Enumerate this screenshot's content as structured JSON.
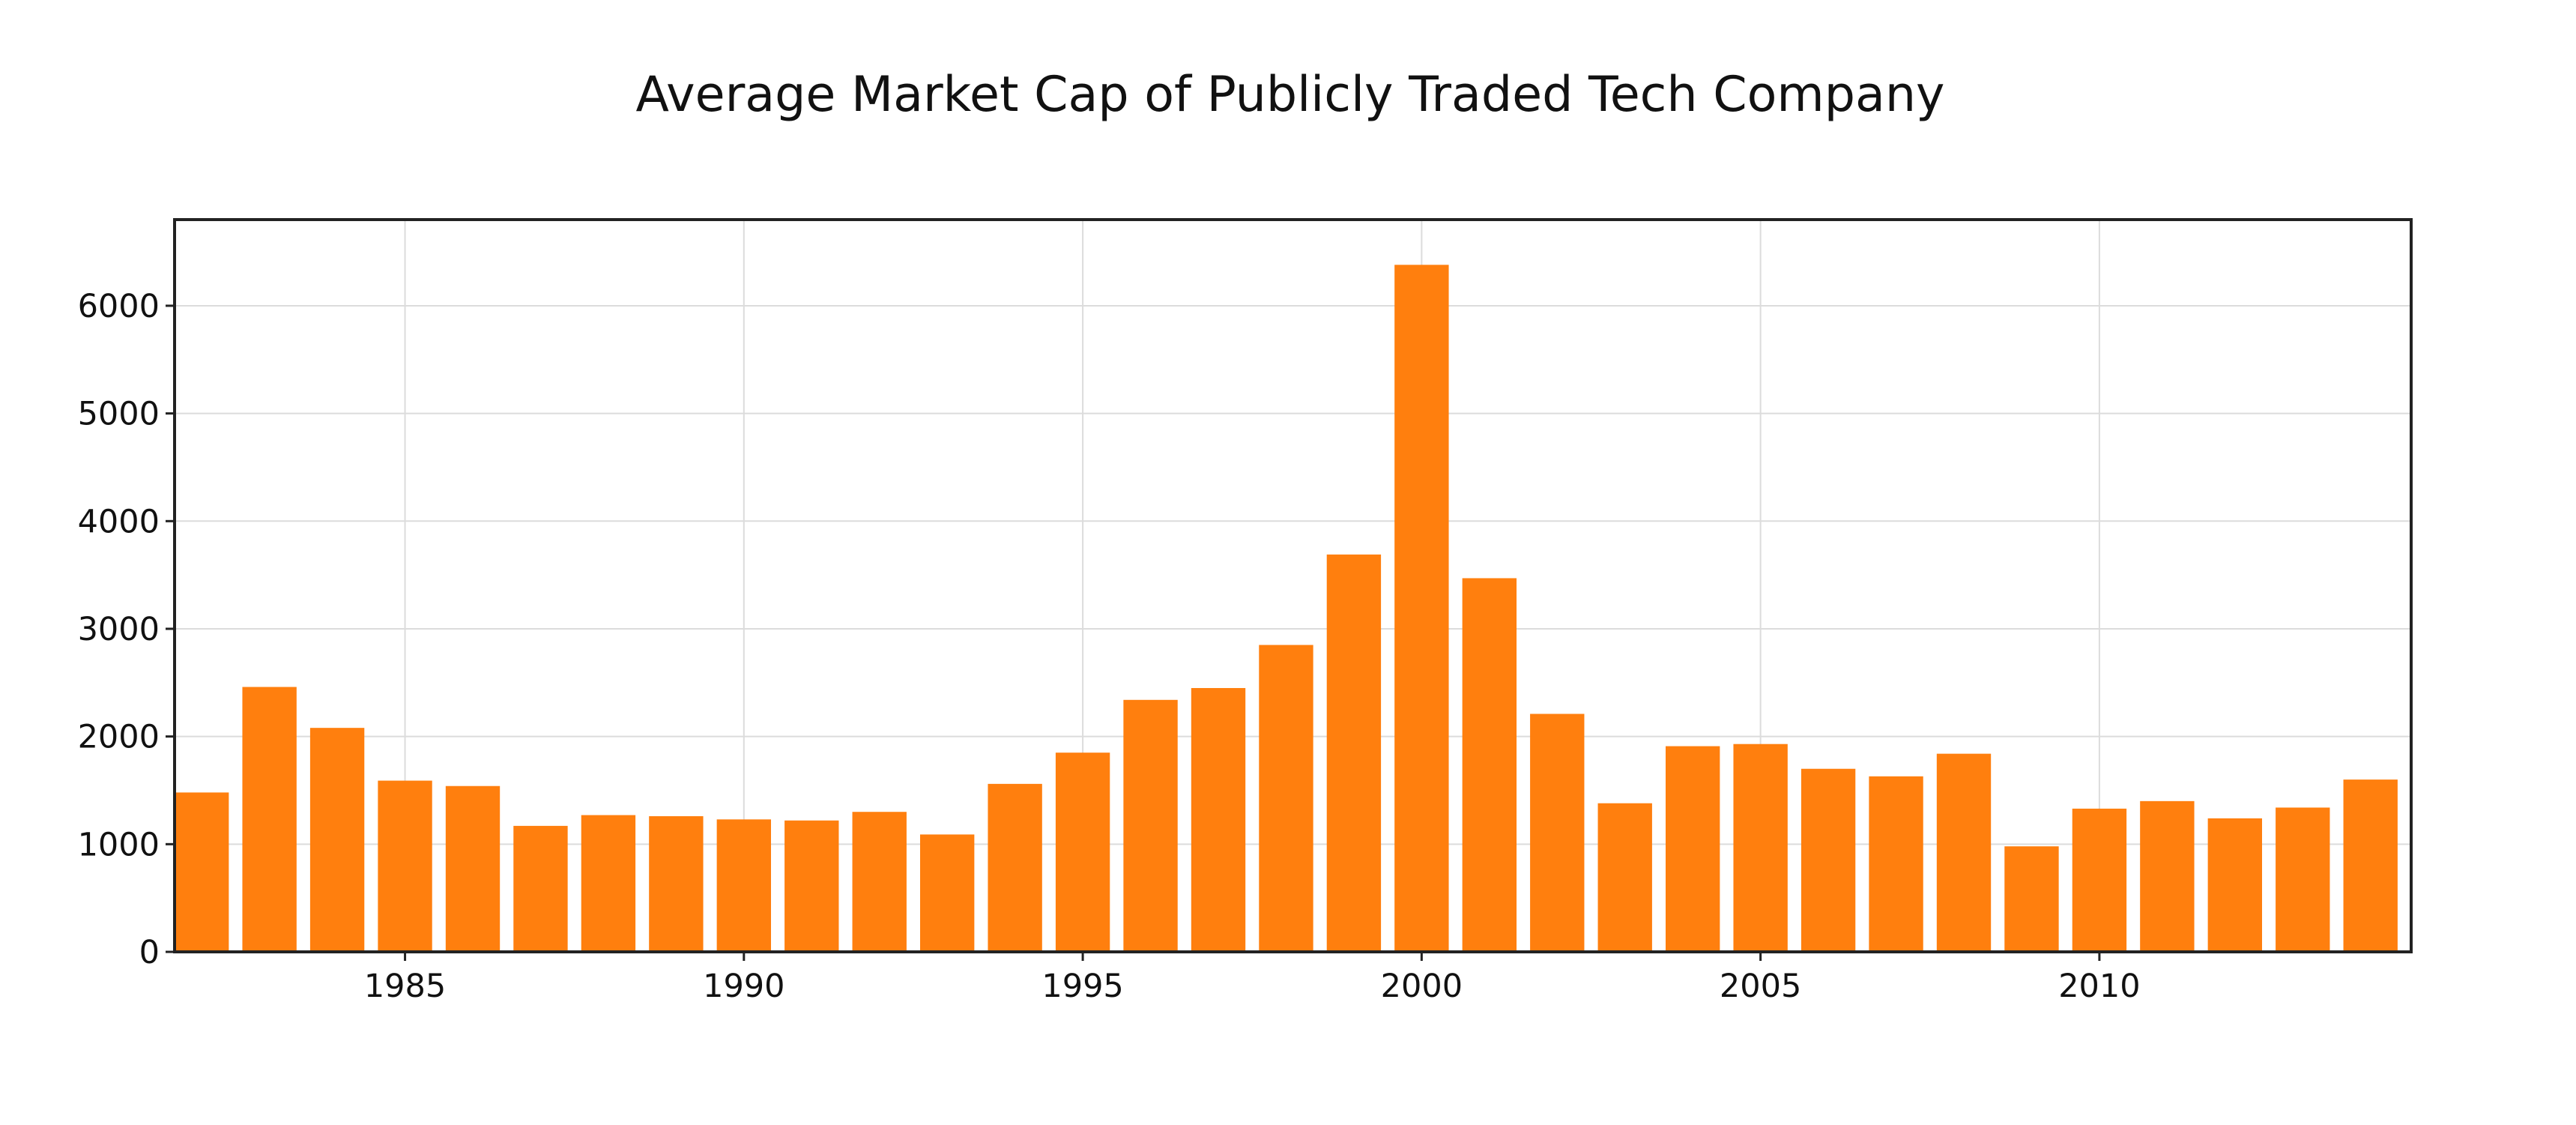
{
  "chart_data": {
    "type": "bar",
    "title": "Average Market Cap of Publicly Traded Tech Company",
    "xlabel": "",
    "ylabel": "",
    "x": [
      1982,
      1983,
      1984,
      1985,
      1986,
      1987,
      1988,
      1989,
      1990,
      1991,
      1992,
      1993,
      1994,
      1995,
      1996,
      1997,
      1998,
      1999,
      2000,
      2001,
      2002,
      2003,
      2004,
      2005,
      2006,
      2007,
      2008,
      2009,
      2010,
      2011,
      2012,
      2013,
      2014
    ],
    "values": [
      1480,
      2460,
      2080,
      1590,
      1540,
      1170,
      1270,
      1260,
      1230,
      1220,
      1300,
      1090,
      1560,
      1850,
      2340,
      2450,
      2850,
      3690,
      6380,
      3470,
      2210,
      1380,
      1910,
      1930,
      1700,
      1630,
      1840,
      980,
      1330,
      1400,
      1240,
      1340,
      1600
    ],
    "xlim": [
      1981.6,
      2014.6
    ],
    "ylim": [
      0,
      6800
    ],
    "xticks": [
      1985,
      1990,
      1995,
      2000,
      2005,
      2010
    ],
    "yticks": [
      0,
      1000,
      2000,
      3000,
      4000,
      5000,
      6000
    ],
    "bar_color": "#ff7f0e",
    "grid": true,
    "legend": "none"
  }
}
